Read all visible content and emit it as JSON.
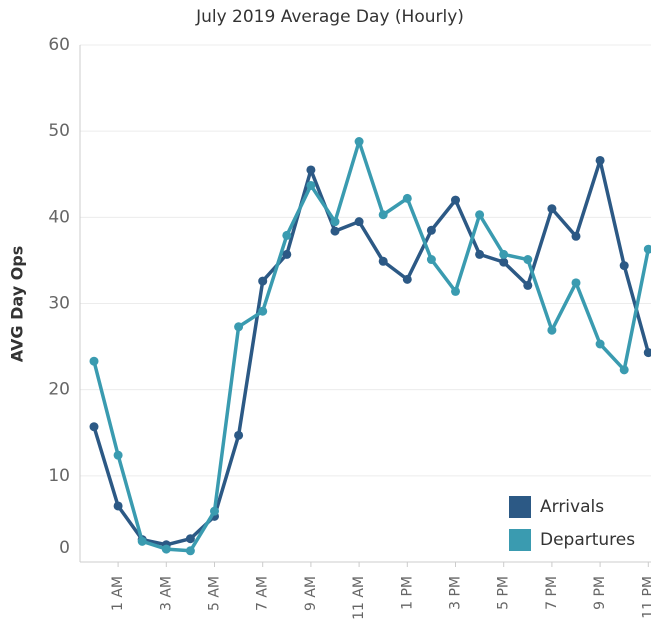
{
  "chart_data": {
    "type": "line",
    "title": "July 2019 Average Day (Hourly)",
    "y_label": "AVG Day Ops",
    "categories": [
      null,
      "1 AM",
      null,
      "3 AM",
      null,
      "5 AM",
      null,
      "7 AM",
      null,
      "9 AM",
      null,
      "11 AM",
      null,
      "1 PM",
      null,
      "3 PM",
      null,
      "5 PM",
      null,
      "7 PM",
      null,
      "9 PM",
      null,
      "11 PM"
    ],
    "series": [
      {
        "name": "Arrivals",
        "color": "#2c5985",
        "values": [
          15.7,
          6.5,
          2.6,
          2.0,
          2.7,
          5.3,
          14.7,
          32.6,
          35.7,
          45.5,
          38.4,
          39.5,
          34.9,
          32.8,
          38.5,
          42.0,
          35.7,
          34.8,
          32.1,
          41.0,
          37.8,
          46.6,
          34.4,
          24.3
        ]
      },
      {
        "name": "Departures",
        "color": "#3a9bb0",
        "values": [
          23.3,
          12.4,
          2.4,
          1.5,
          1.3,
          5.9,
          27.3,
          29.1,
          37.9,
          43.7,
          39.5,
          48.8,
          40.3,
          42.2,
          35.1,
          31.4,
          40.3,
          35.7,
          35.1,
          26.9,
          32.4,
          25.3,
          22.3,
          36.3
        ]
      }
    ],
    "ylim": [
      0,
      60
    ],
    "yticks": [
      0,
      10,
      20,
      30,
      40,
      50,
      60
    ],
    "grid": true,
    "legend": "lower right"
  }
}
